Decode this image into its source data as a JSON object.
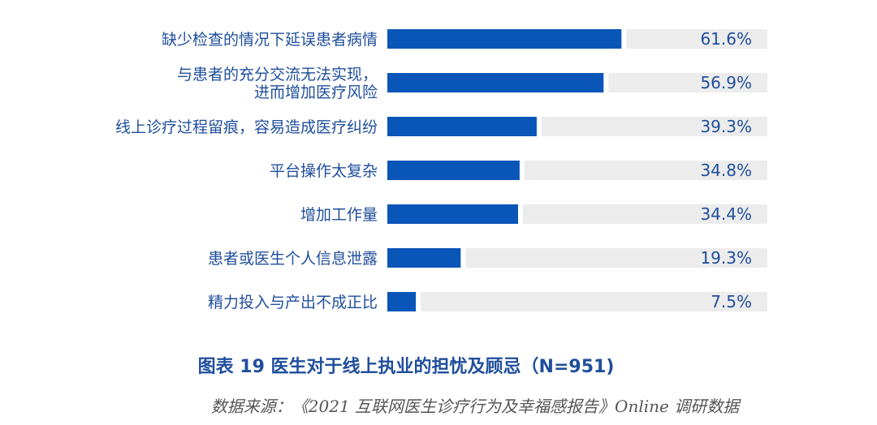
{
  "chart_data": {
    "type": "bar",
    "orientation": "horizontal",
    "categories": [
      [
        "缺少检查的情况下延误患者病情"
      ],
      [
        "与患者的充分交流无法实现，",
        "进而增加医疗风险"
      ],
      [
        "线上诊疗过程留痕，容易造成医疗纠纷"
      ],
      [
        "平台操作太复杂"
      ],
      [
        "增加工作量"
      ],
      [
        "患者或医生个人信息泄露"
      ],
      [
        "精力投入与产出不成正比"
      ]
    ],
    "values": [
      61.6,
      56.9,
      39.3,
      34.8,
      34.4,
      19.3,
      7.5
    ],
    "value_labels": [
      "61.6%",
      "56.9%",
      "39.3%",
      "34.8%",
      "34.4%",
      "19.3%",
      "7.5%"
    ],
    "xlim": [
      0,
      100
    ],
    "title": "图表 19 医生对于线上执业的担忧及顾忌（N=951)",
    "source": "数据来源：《2021 互联网医生诊疗行为及幸福感报告》Online 调研数据",
    "colors": {
      "bar": "#0a56b8",
      "track": "#ececec",
      "text": "#1f4e9c"
    }
  }
}
